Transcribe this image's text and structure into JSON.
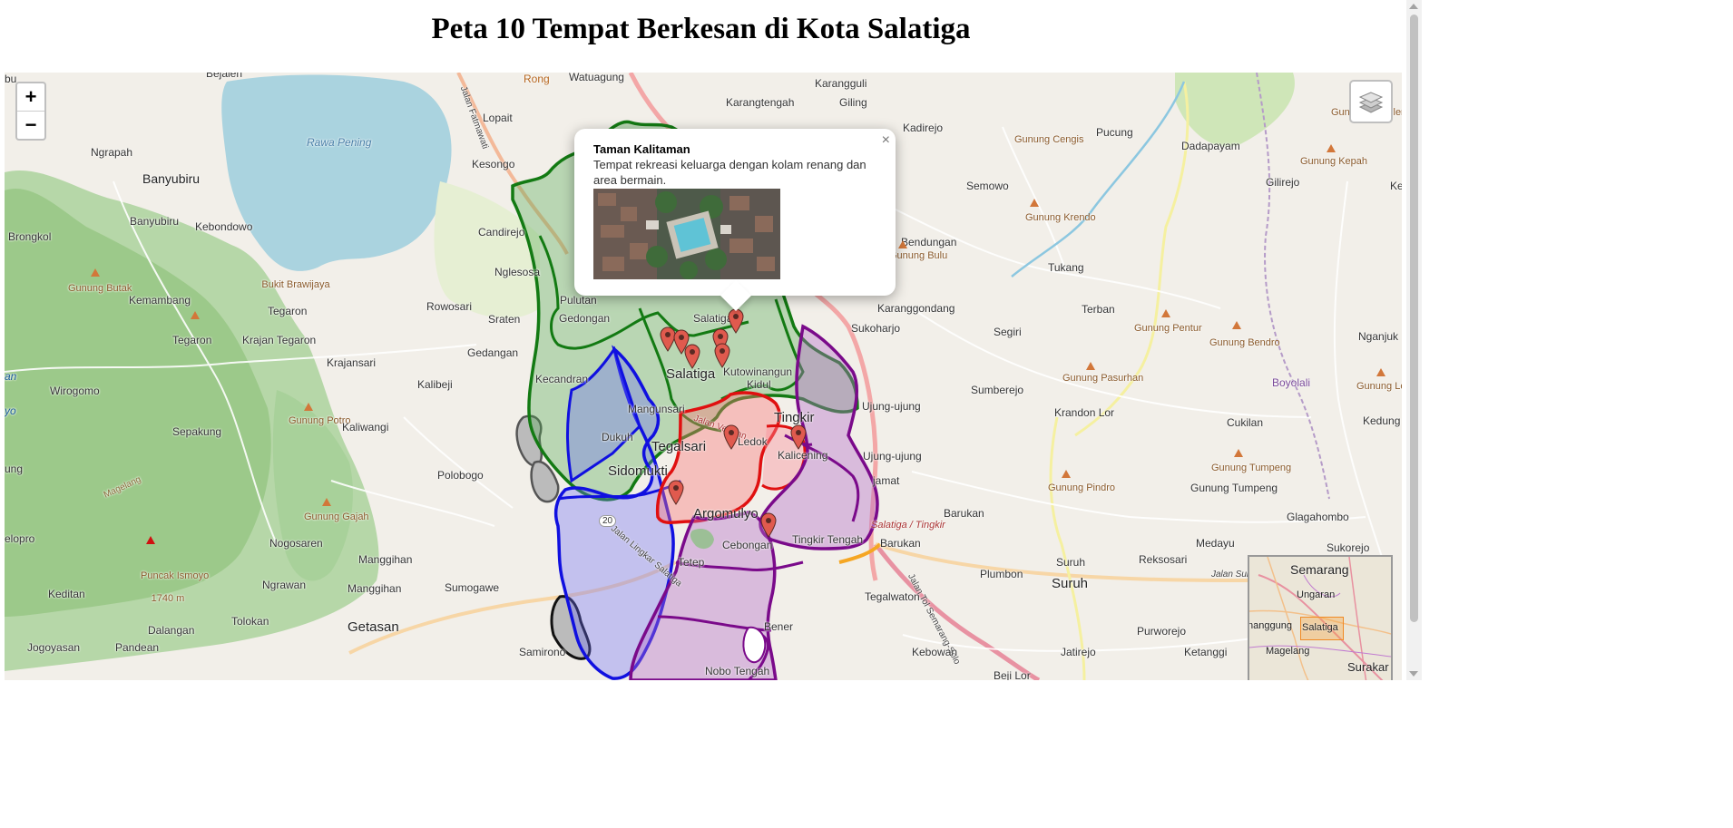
{
  "page": {
    "title": "Peta 10 Tempat Berkesan di Kota Salatiga"
  },
  "controls": {
    "zoom_in": "+",
    "zoom_out": "−",
    "layers_icon": "layers-icon"
  },
  "popup": {
    "title": "Taman Kalitaman",
    "description": "Tempat rekreasi keluarga dengan kolam renang dan area bermain.",
    "close": "×"
  },
  "labels": {
    "bu": "bu",
    "bejalen": "Bejalen",
    "rong": "Rong",
    "watuagung": "Watuagung",
    "karangguli": "Karangguli",
    "karangtengah": "Karangtengah",
    "giling": "Giling",
    "kadirejo": "Kadirejo",
    "pucung": "Pucung",
    "dadapayam": "Dadapayam",
    "lopait": "Lopait",
    "ngrapah": "Ngrapah",
    "rawa_pening": "Rawa Pening",
    "banyubiru": "Banyubiru",
    "kesongo": "Kesongo",
    "banyubiru2": "Banyubiru",
    "kebondowo": "Kebondowo",
    "candirejo": "Candirejo",
    "brongkol": "Brongkol",
    "semowo": "Semowo",
    "gilirejo": "Gilirejo",
    "ke": "Ke",
    "gunung_cengis": "Gunung Cengis",
    "gunung_kepah": "Gunung Kepah",
    "gunung_ngebleng": "Gunung Ngebleng",
    "gunung_krendo": "Gunung Krendo",
    "bendungan": "Bendungan",
    "gunung_bulu": "Gunung Bulu",
    "tukang": "Tukang",
    "nglesoso": "Nglesosa",
    "gunung_butak": "Gunung Butak",
    "bukit_brawijaya": "Bukit Brawijaya",
    "kemambang": "Kemambang",
    "tegaron": "Tegaron",
    "rowosari": "Rowosari",
    "pulutan": "Pulutan",
    "gedongan": "Gedongan",
    "sraten": "Sraten",
    "karanggondang": "Karanggondang",
    "terban": "Terban",
    "sukoharjo": "Sukoharjo",
    "segiri": "Segiri",
    "gunung_pentur": "Gunung Pentur",
    "gunung_bendro": "Gunung Bendro",
    "nganjuk": "Nganjuk",
    "tegaron2": "Tegaron",
    "krajan_tegaron": "Krajan Tegaron",
    "gedangan": "Gedangan",
    "krajansari": "Krajansari",
    "kecandran": "Kecandran",
    "salatiga_small": "Salatiga",
    "salatiga": "Salatiga",
    "kutowinangun": "Kutowinangun",
    "kidul": "Kidul",
    "gunung_pasurhan": "Gunung Pasurhan",
    "boyolali": "Boyolali",
    "gunung_lestri": "Gunung Lestri",
    "an": "an",
    "yo": "yo",
    "wirogomo": "Wirogomo",
    "kalibeji": "Kalibeji",
    "mangunsari": "Mangunsari",
    "tingkir_top": "Tingkir",
    "ujung_ujung": "Ujung-ujung",
    "sumberejo": "Sumberejo",
    "krandon_lor": "Krandon Lor",
    "cukilan": "Cukilan",
    "kedung": "Kedung",
    "sepakung": "Sepakung",
    "gunung_potro": "Gunung Potro",
    "kaliwangi": "Kaliwangi",
    "dukuh": "Dukuh",
    "tegalsari": "Tegalsari",
    "ledok": "Ledok",
    "kalicening": "Kalicening",
    "ujung_ujung2": "Ujung-ujung",
    "ung": "ung",
    "polobogo": "Polobogo",
    "sidomukti": "Sidomukti",
    "gunung_tumpeng": "Gunung Tumpeng",
    "gunung_tumpeng2": "Gunung Tumpeng",
    "jamat": "jamat",
    "magelang_road": "Magelang",
    "gunung_gajah": "Gunung Gajah",
    "argomulyo": "Argomulyo",
    "salatiga_tingkir": "Salatiga / Tingkir",
    "barukan": "Barukan",
    "gunung_pindro": "Gunung Pindro",
    "glagahombo": "Glagahombo",
    "elopro": "elopro",
    "nogosaren": "Nogosaren",
    "cebongan": "Cebongan",
    "tingkir_tengah": "Tingkir Tengah",
    "barukan2": "Barukan",
    "medayu": "Medayu",
    "sukorejo": "Sukorejo",
    "puncak_ismoyo": "Puncak Ismoyo",
    "elev": "1740 m",
    "manggihan": "Manggihan",
    "suruh": "Suruh",
    "reksosari": "Reksosari",
    "jalan_lingkar": "Jalan Lingkar Salatiga",
    "tetep": "Tetep",
    "plumbon": "Plumbon",
    "suruh_big": "Suruh",
    "jalan_suruh": "Jalan Suruh",
    "keditan": "Keditan",
    "ngrawan": "Ngrawan",
    "manggihan2": "Manggihan",
    "sumogawe": "Sumogawe",
    "tolokan": "Tolokan",
    "tegalwaton": "Tegalwaton",
    "jalan_tol": "Jalan Tol Semarang-Solo",
    "dalangan": "Dalangan",
    "getasan": "Getasan",
    "bener": "Bener",
    "purworejo": "Purworejo",
    "jogoyasan": "Jogoyasan",
    "pandean": "Pandean",
    "samirono": "Samirono",
    "kebowan": "Kebowan",
    "jatirejo": "Jatirejo",
    "ketanggi": "Ketanggi",
    "nobo_tengah": "Nobo Tengah",
    "beji_lor": "Beji Lor",
    "road20": "20",
    "fatmawati": "Jalan Fatmawati",
    "jalan_veteran": "Jalan Veteran"
  },
  "minimap": {
    "semarang": "Semarang",
    "ungaran": "Ungaran",
    "nanggung": "nanggung",
    "salatiga": "Salatiga",
    "magelang": "Magelang",
    "surakarta": "Surakar"
  },
  "colors": {
    "green": "#1a7a1a",
    "blue": "#1010e0",
    "red": "#e01010",
    "purple": "#7a0a8a",
    "gray": "#555555"
  }
}
